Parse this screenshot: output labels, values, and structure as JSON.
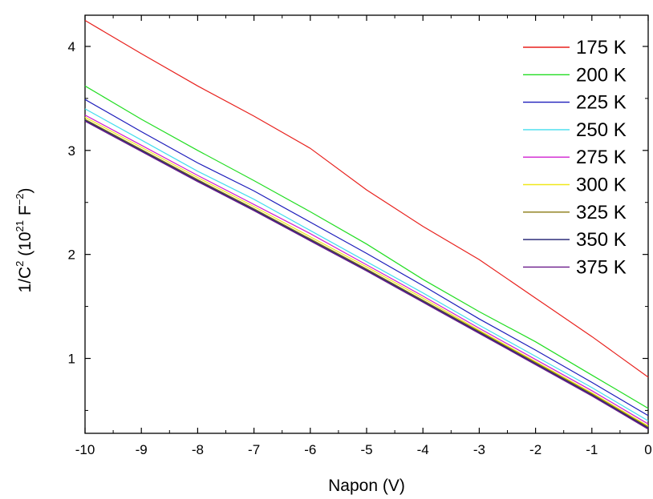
{
  "chart_data": {
    "type": "line",
    "xlabel": "Napon (V)",
    "ylabel": {
      "base": "1/C",
      "exp1": "2",
      "mid": " (10",
      "exp2": "21",
      "unit": " F",
      "exp3": "−2",
      "end": ")"
    },
    "xlim": [
      -10,
      0
    ],
    "ylim": [
      0.28,
      4.3
    ],
    "x_ticks": [
      -10,
      -9,
      -8,
      -7,
      -6,
      -5,
      -4,
      -3,
      -2,
      -1,
      0
    ],
    "x_tick_labels": [
      "-10",
      "-9",
      "-8",
      "-7",
      "-6",
      "-5",
      "-4",
      "-3",
      "-2",
      "-1",
      "0"
    ],
    "y_ticks": [
      1,
      2,
      3,
      4
    ],
    "y_tick_labels": [
      "1",
      "2",
      "3",
      "4"
    ],
    "grid": false,
    "legend_position": "top-right",
    "series": [
      {
        "name": "175 K",
        "color": "#e8211d",
        "x": [
          -10,
          -9,
          -8,
          -7,
          -6,
          -5,
          -4,
          -3,
          -2,
          -1,
          0
        ],
        "y": [
          4.25,
          3.93,
          3.62,
          3.33,
          3.02,
          2.62,
          2.27,
          1.95,
          1.58,
          1.21,
          0.82
        ]
      },
      {
        "name": "200 K",
        "color": "#22dd22",
        "x": [
          -10,
          -9,
          -8,
          -7,
          -6,
          -5,
          -4,
          -3,
          -2,
          -1,
          0
        ],
        "y": [
          3.62,
          3.3,
          3.0,
          2.71,
          2.41,
          2.1,
          1.76,
          1.45,
          1.16,
          0.84,
          0.52
        ]
      },
      {
        "name": "225 K",
        "color": "#1c1cbb",
        "x": [
          -10,
          -9,
          -8,
          -7,
          -6,
          -5,
          -4,
          -3,
          -2,
          -1,
          0
        ],
        "y": [
          3.49,
          3.18,
          2.88,
          2.61,
          2.31,
          2.01,
          1.7,
          1.38,
          1.08,
          0.77,
          0.45
        ]
      },
      {
        "name": "250 K",
        "color": "#44ddee",
        "x": [
          -10,
          -9,
          -8,
          -7,
          -6,
          -5,
          -4,
          -3,
          -2,
          -1,
          0
        ],
        "y": [
          3.4,
          3.1,
          2.8,
          2.53,
          2.23,
          1.93,
          1.63,
          1.32,
          1.02,
          0.72,
          0.4
        ]
      },
      {
        "name": "275 K",
        "color": "#d020d0",
        "x": [
          -10,
          -9,
          -8,
          -7,
          -6,
          -5,
          -4,
          -3,
          -2,
          -1,
          0
        ],
        "y": [
          3.34,
          3.05,
          2.76,
          2.48,
          2.2,
          1.9,
          1.6,
          1.29,
          0.99,
          0.69,
          0.37
        ]
      },
      {
        "name": "300 K",
        "color": "#f0e81a",
        "x": [
          -10,
          -9,
          -8,
          -7,
          -6,
          -5,
          -4,
          -3,
          -2,
          -1,
          0
        ],
        "y": [
          3.32,
          3.03,
          2.74,
          2.46,
          2.17,
          1.88,
          1.58,
          1.27,
          0.97,
          0.67,
          0.35
        ]
      },
      {
        "name": "325 K",
        "color": "#8a7a10",
        "x": [
          -10,
          -9,
          -8,
          -7,
          -6,
          -5,
          -4,
          -3,
          -2,
          -1,
          0
        ],
        "y": [
          3.3,
          3.01,
          2.72,
          2.44,
          2.15,
          1.86,
          1.56,
          1.26,
          0.96,
          0.66,
          0.34
        ]
      },
      {
        "name": "350 K",
        "color": "#1a1a6e",
        "x": [
          -10,
          -9,
          -8,
          -7,
          -6,
          -5,
          -4,
          -3,
          -2,
          -1,
          0
        ],
        "y": [
          3.29,
          3.0,
          2.71,
          2.43,
          2.14,
          1.85,
          1.55,
          1.25,
          0.95,
          0.65,
          0.33
        ]
      },
      {
        "name": "375 K",
        "color": "#6a1a8a",
        "x": [
          -10,
          -9,
          -8,
          -7,
          -6,
          -5,
          -4,
          -3,
          -2,
          -1,
          0
        ],
        "y": [
          3.28,
          2.99,
          2.7,
          2.42,
          2.13,
          1.84,
          1.54,
          1.24,
          0.94,
          0.64,
          0.32
        ]
      }
    ]
  }
}
